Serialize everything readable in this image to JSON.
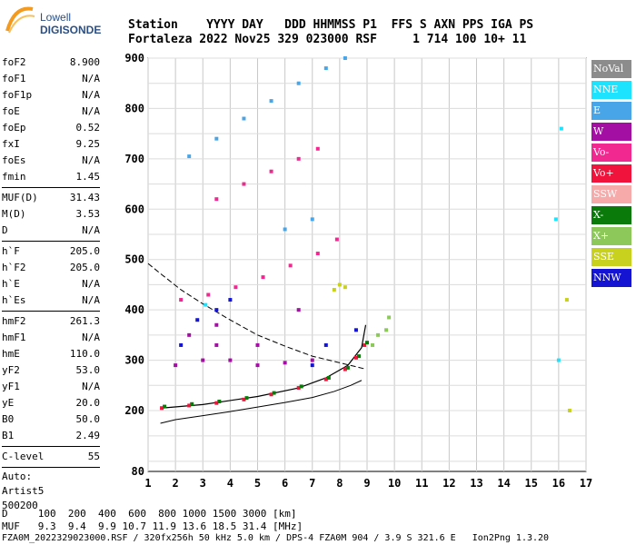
{
  "logo": {
    "line1": "Lowell",
    "line2": "DIGISONDE"
  },
  "header": {
    "row1": "Station    YYYY DAY   DDD HHMMSS P1  FFS S AXN PPS IGA PS",
    "row2": "Fortaleza 2022 Nov25 329 023000 RSF     1 714 100 10+ 11"
  },
  "params": {
    "group1": [
      {
        "name": "foF2",
        "value": "8.900"
      },
      {
        "name": "foF1",
        "value": "N/A"
      },
      {
        "name": "foF1p",
        "value": "N/A"
      },
      {
        "name": "foE",
        "value": "N/A"
      },
      {
        "name": "foEp",
        "value": "0.52"
      },
      {
        "name": "fxI",
        "value": "9.25"
      },
      {
        "name": "foEs",
        "value": "N/A"
      },
      {
        "name": "fmin",
        "value": "1.45"
      }
    ],
    "group2": [
      {
        "name": "MUF(D)",
        "value": "31.43"
      },
      {
        "name": "M(D)",
        "value": "3.53"
      },
      {
        "name": "D",
        "value": "N/A"
      }
    ],
    "group3": [
      {
        "name": "h`F",
        "value": "205.0"
      },
      {
        "name": "h`F2",
        "value": "205.0"
      },
      {
        "name": "h`E",
        "value": "N/A"
      },
      {
        "name": "h`Es",
        "value": "N/A"
      }
    ],
    "group4": [
      {
        "name": "hmF2",
        "value": "261.3"
      },
      {
        "name": "hmF1",
        "value": "N/A"
      },
      {
        "name": "hmE",
        "value": "110.0"
      },
      {
        "name": "yF2",
        "value": "53.0"
      },
      {
        "name": "yF1",
        "value": "N/A"
      },
      {
        "name": "yE",
        "value": "20.0"
      },
      {
        "name": "B0",
        "value": "50.0"
      },
      {
        "name": "B1",
        "value": "2.49"
      }
    ],
    "group5": [
      {
        "name": "C-level",
        "value": "55"
      }
    ],
    "auto": [
      "Auto:",
      "Artist5",
      "500200"
    ]
  },
  "legend": [
    {
      "label": "NoVal",
      "color": "#8c8c8c"
    },
    {
      "label": "NNE",
      "color": "#1ee3ff"
    },
    {
      "label": "E",
      "color": "#48a6e8"
    },
    {
      "label": "W",
      "color": "#a30ea3"
    },
    {
      "label": "Vo-",
      "color": "#f02890"
    },
    {
      "label": "Vo+",
      "color": "#f0143c"
    },
    {
      "label": "SSW",
      "color": "#f7aaaa"
    },
    {
      "label": "X-",
      "color": "#0a7a0a"
    },
    {
      "label": "X+",
      "color": "#8cc85a"
    },
    {
      "label": "SSE",
      "color": "#c8d21e"
    },
    {
      "label": "NNW",
      "color": "#1414d2"
    }
  ],
  "footer": {
    "row1": "D     100  200  400  600  800 1000 1500 3000 [km]",
    "row2": "MUF   9.3  9.4  9.9 10.7 11.9 13.6 18.5 31.4 [MHz]",
    "row3": "FZA0M_2022329023000.RSF / 320fx256h 50 kHz 5.0 km / DPS-4 FZA0M 904 / 3.9 S 321.6 E   Ion2Png 1.3.20"
  },
  "chart_data": {
    "type": "scatter",
    "title": "",
    "xlabel": "",
    "ylabel": "",
    "xlim": [
      1,
      17
    ],
    "ylim": [
      80,
      900
    ],
    "x_ticks": [
      1,
      2,
      3,
      4,
      5,
      6,
      7,
      8,
      9,
      10,
      11,
      12,
      13,
      14,
      15,
      16,
      17
    ],
    "y_ticks": [
      80,
      200,
      300,
      400,
      500,
      600,
      700,
      800,
      900
    ],
    "grid": true,
    "series": [
      {
        "name": "Vo+",
        "values": [
          [
            1.5,
            205
          ],
          [
            2.5,
            210
          ],
          [
            3.5,
            215
          ],
          [
            4.5,
            222
          ],
          [
            5.5,
            232
          ],
          [
            6.5,
            245
          ],
          [
            7.5,
            262
          ],
          [
            8.2,
            282
          ],
          [
            8.6,
            305
          ],
          [
            8.9,
            330
          ]
        ]
      },
      {
        "name": "X-",
        "values": [
          [
            1.6,
            208
          ],
          [
            2.6,
            213
          ],
          [
            3.6,
            218
          ],
          [
            4.6,
            225
          ],
          [
            5.6,
            235
          ],
          [
            6.6,
            248
          ],
          [
            7.6,
            265
          ],
          [
            8.3,
            285
          ],
          [
            8.7,
            308
          ],
          [
            9.0,
            335
          ]
        ]
      },
      {
        "name": "W",
        "values": [
          [
            2.0,
            290
          ],
          [
            3.0,
            300
          ],
          [
            4.0,
            300
          ],
          [
            5.0,
            290
          ],
          [
            6.0,
            295
          ],
          [
            7.0,
            300
          ],
          [
            3.5,
            330
          ],
          [
            5.0,
            330
          ],
          [
            6.5,
            400
          ],
          [
            2.5,
            350
          ],
          [
            3.5,
            370
          ]
        ]
      },
      {
        "name": "Vo-",
        "values": [
          [
            2.2,
            420
          ],
          [
            3.2,
            430
          ],
          [
            4.2,
            445
          ],
          [
            5.2,
            465
          ],
          [
            6.2,
            488
          ],
          [
            7.2,
            512
          ],
          [
            7.9,
            540
          ],
          [
            3.5,
            620
          ],
          [
            4.5,
            650
          ],
          [
            5.5,
            675
          ],
          [
            6.5,
            700
          ],
          [
            7.2,
            720
          ]
        ]
      },
      {
        "name": "E",
        "values": [
          [
            2.5,
            705
          ],
          [
            3.5,
            740
          ],
          [
            4.5,
            780
          ],
          [
            5.5,
            815
          ],
          [
            6.5,
            850
          ],
          [
            7.5,
            880
          ],
          [
            8.2,
            900
          ],
          [
            6.0,
            560
          ],
          [
            7.0,
            580
          ]
        ]
      },
      {
        "name": "NNW",
        "values": [
          [
            2.2,
            330
          ],
          [
            2.8,
            380
          ],
          [
            3.5,
            400
          ],
          [
            4.0,
            420
          ],
          [
            7.5,
            330
          ],
          [
            8.6,
            360
          ],
          [
            7.0,
            290
          ]
        ]
      },
      {
        "name": "X+",
        "values": [
          [
            9.4,
            350
          ],
          [
            9.8,
            385
          ],
          [
            9.7,
            360
          ],
          [
            9.2,
            330
          ]
        ]
      },
      {
        "name": "SSE",
        "values": [
          [
            7.8,
            440
          ],
          [
            8.0,
            450
          ],
          [
            8.2,
            445
          ],
          [
            16.3,
            420
          ],
          [
            16.4,
            200
          ]
        ]
      },
      {
        "name": "NNE",
        "values": [
          [
            15.9,
            580
          ],
          [
            16.0,
            300
          ],
          [
            16.1,
            760
          ],
          [
            3.1,
            410
          ]
        ]
      }
    ],
    "profile_curve": [
      [
        1.45,
        175
      ],
      [
        2,
        182
      ],
      [
        3,
        190
      ],
      [
        4,
        198
      ],
      [
        5,
        207
      ],
      [
        6,
        216
      ],
      [
        7,
        226
      ],
      [
        7.8,
        238
      ],
      [
        8.4,
        250
      ],
      [
        8.8,
        260
      ]
    ],
    "black_trace": [
      [
        1.5,
        205
      ],
      [
        3,
        212
      ],
      [
        5,
        228
      ],
      [
        6.5,
        245
      ],
      [
        7.5,
        265
      ],
      [
        8.3,
        290
      ],
      [
        8.8,
        325
      ],
      [
        8.95,
        370
      ]
    ],
    "dashed_curve": [
      [
        1,
        492
      ],
      [
        1.5,
        470
      ],
      [
        2.2,
        440
      ],
      [
        3,
        412
      ],
      [
        4,
        380
      ],
      [
        5,
        350
      ],
      [
        6,
        328
      ],
      [
        7,
        308
      ],
      [
        8,
        295
      ],
      [
        8.9,
        283
      ]
    ]
  }
}
